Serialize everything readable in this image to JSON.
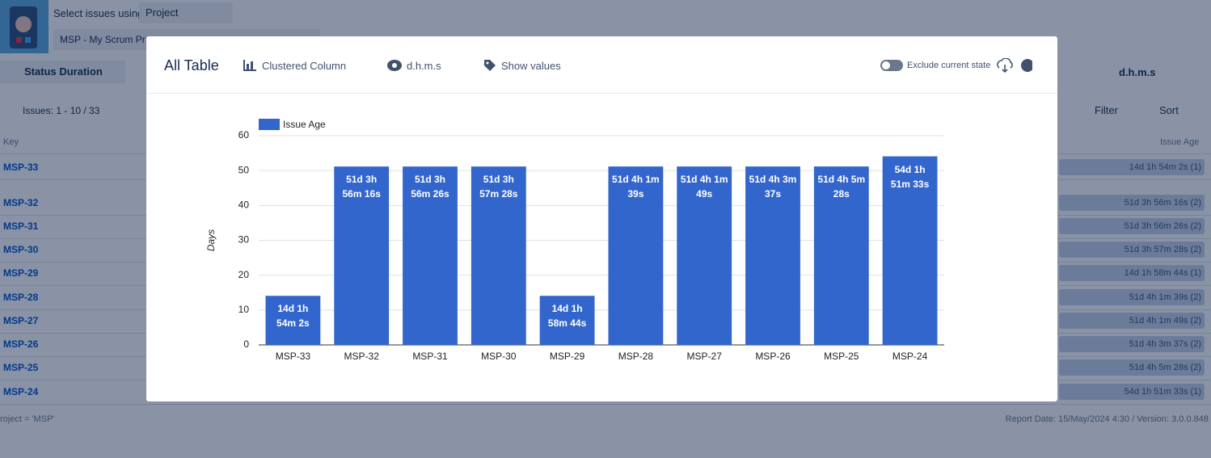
{
  "app": {
    "select_label": "Select issues using",
    "select_value": "Project",
    "project": "MSP - My Scrum Pr",
    "status": "Status Duration",
    "format": "d.h.m.s",
    "issues_count": "Issues: 1 - 10 / 33",
    "filter": "Filter",
    "sort": "Sort",
    "key_header": "Key",
    "age_header": "Issue Age",
    "rows": [
      {
        "key": "MSP-33",
        "age": "14d 1h 54m 2s",
        "count": "(1)"
      },
      {
        "key": "MSP-32",
        "age": "51d 3h 56m 16s",
        "count": "(2)"
      },
      {
        "key": "MSP-31",
        "age": "51d 3h 56m 26s",
        "count": "(2)"
      },
      {
        "key": "MSP-30",
        "age": "51d 3h 57m 28s",
        "count": "(2)"
      },
      {
        "key": "MSP-29",
        "age": "14d 1h 58m 44s",
        "count": "(1)"
      },
      {
        "key": "MSP-28",
        "age": "51d 4h 1m 39s",
        "count": "(2)"
      },
      {
        "key": "MSP-27",
        "age": "51d 4h 1m 49s",
        "count": "(2)"
      },
      {
        "key": "MSP-26",
        "age": "51d 4h 3m 37s",
        "count": "(2)"
      },
      {
        "key": "MSP-25",
        "age": "51d 4h 5m 28s",
        "count": "(2)"
      },
      {
        "key": "MSP-24",
        "age": "54d 1h 51m 33s",
        "count": "(1)"
      }
    ],
    "footer_left": "roject = 'MSP'",
    "footer_right": "Report Date: 15/May/2024 4:30 / Version: 3.0.0.848"
  },
  "modal": {
    "title": "All Table",
    "chart_type": "Clustered Column",
    "format": "d.h.m.s",
    "show_values": "Show values",
    "exclude": "Exclude current state"
  },
  "chart_data": {
    "type": "bar",
    "y_label": "Days",
    "categories": [
      "MSP-33",
      "MSP-32",
      "MSP-31",
      "MSP-30",
      "MSP-29",
      "MSP-28",
      "MSP-27",
      "MSP-26",
      "MSP-25",
      "MSP-24"
    ],
    "series": [
      {
        "name": "Issue Age",
        "color": "#3366cc",
        "values": [
          14.0792,
          51.1641,
          51.1642,
          51.1649,
          14.0825,
          51.1678,
          51.1679,
          51.1692,
          51.1705,
          54.0775
        ],
        "value_labels": [
          "14d 1h 54m 2s",
          "51d 3h 56m 16s",
          "51d 3h 56m 26s",
          "51d 3h 57m 28s",
          "14d 1h 58m 44s",
          "51d 4h 1m 39s",
          "51d 4h 1m 49s",
          "51d 4h 3m 37s",
          "51d 4h 5m 28s",
          "54d 1h 51m 33s"
        ]
      }
    ],
    "ylim": [
      0,
      60
    ],
    "yticks": [
      0,
      10,
      20,
      30,
      40,
      50,
      60
    ],
    "grid": true
  }
}
